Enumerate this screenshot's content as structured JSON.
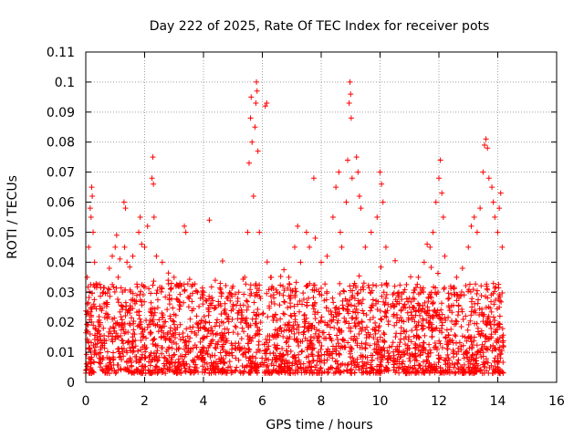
{
  "chart_data": {
    "type": "scatter",
    "title": "Day 222 of 2025, Rate Of TEC Index for receiver pots",
    "xlabel": "GPS time / hours",
    "ylabel": "ROTI / TECUs",
    "xlim": [
      0,
      16
    ],
    "ylim": [
      0,
      0.11
    ],
    "xticks": [
      0,
      2,
      4,
      6,
      8,
      10,
      12,
      14,
      16
    ],
    "yticks": [
      0,
      0.01,
      0.02,
      0.03,
      0.04,
      0.05,
      0.06,
      0.07,
      0.08,
      0.09,
      0.1,
      0.11
    ],
    "xtick_labels": [
      "0",
      "2",
      "4",
      "6",
      "8",
      "10",
      "12",
      "14",
      "16"
    ],
    "ytick_labels": [
      "0",
      "0.01",
      "0.02",
      "0.03",
      "0.04",
      "0.05",
      "0.06",
      "0.07",
      "0.08",
      "0.09",
      "0.1",
      "0.11"
    ],
    "grid": true,
    "marker": "+",
    "marker_color": "#ff0000",
    "x_data_range": [
      0.0,
      14.2
    ],
    "series": [
      {
        "name": "pots",
        "points": [
          [
            0.05,
            0.035
          ],
          [
            0.1,
            0.045
          ],
          [
            0.15,
            0.058
          ],
          [
            0.2,
            0.065
          ],
          [
            0.22,
            0.062
          ],
          [
            0.25,
            0.05
          ],
          [
            0.3,
            0.04
          ],
          [
            0.18,
            0.055
          ],
          [
            0.6,
            0.03
          ],
          [
            0.8,
            0.038
          ],
          [
            0.9,
            0.042
          ],
          [
            1.0,
            0.045
          ],
          [
            1.05,
            0.049
          ],
          [
            1.1,
            0.035
          ],
          [
            1.3,
            0.06
          ],
          [
            1.35,
            0.058
          ],
          [
            1.32,
            0.045
          ],
          [
            1.4,
            0.04
          ],
          [
            1.6,
            0.042
          ],
          [
            1.8,
            0.05
          ],
          [
            1.85,
            0.055
          ],
          [
            1.9,
            0.046
          ],
          [
            2.0,
            0.045
          ],
          [
            2.1,
            0.052
          ],
          [
            2.25,
            0.068
          ],
          [
            2.28,
            0.075
          ],
          [
            2.3,
            0.066
          ],
          [
            2.32,
            0.055
          ],
          [
            2.4,
            0.042
          ],
          [
            2.6,
            0.04
          ],
          [
            2.8,
            0.034
          ],
          [
            3.0,
            0.035
          ],
          [
            3.2,
            0.033
          ],
          [
            3.35,
            0.052
          ],
          [
            3.4,
            0.05
          ],
          [
            3.6,
            0.032
          ],
          [
            3.8,
            0.03
          ],
          [
            4.0,
            0.03
          ],
          [
            4.2,
            0.054
          ],
          [
            4.4,
            0.034
          ],
          [
            4.6,
            0.03
          ],
          [
            4.8,
            0.028
          ],
          [
            5.0,
            0.032
          ],
          [
            5.2,
            0.03
          ],
          [
            5.4,
            0.035
          ],
          [
            5.5,
            0.05
          ],
          [
            5.55,
            0.073
          ],
          [
            5.6,
            0.088
          ],
          [
            5.62,
            0.095
          ],
          [
            5.65,
            0.08
          ],
          [
            5.7,
            0.062
          ],
          [
            5.8,
            0.1
          ],
          [
            5.82,
            0.097
          ],
          [
            5.78,
            0.093
          ],
          [
            5.75,
            0.085
          ],
          [
            5.85,
            0.077
          ],
          [
            5.9,
            0.05
          ],
          [
            6.1,
            0.092
          ],
          [
            6.15,
            0.093
          ],
          [
            6.3,
            0.035
          ],
          [
            6.5,
            0.03
          ],
          [
            6.7,
            0.032
          ],
          [
            6.9,
            0.035
          ],
          [
            7.1,
            0.045
          ],
          [
            7.2,
            0.052
          ],
          [
            7.3,
            0.04
          ],
          [
            7.5,
            0.05
          ],
          [
            7.6,
            0.045
          ],
          [
            7.75,
            0.068
          ],
          [
            7.8,
            0.048
          ],
          [
            8.0,
            0.04
          ],
          [
            8.2,
            0.042
          ],
          [
            8.4,
            0.055
          ],
          [
            8.5,
            0.065
          ],
          [
            8.6,
            0.07
          ],
          [
            8.65,
            0.05
          ],
          [
            8.7,
            0.045
          ],
          [
            8.85,
            0.06
          ],
          [
            8.9,
            0.074
          ],
          [
            8.95,
            0.093
          ],
          [
            8.98,
            0.1
          ],
          [
            9.0,
            0.096
          ],
          [
            9.02,
            0.088
          ],
          [
            9.05,
            0.068
          ],
          [
            9.2,
            0.075
          ],
          [
            9.25,
            0.07
          ],
          [
            9.3,
            0.062
          ],
          [
            9.35,
            0.058
          ],
          [
            9.5,
            0.045
          ],
          [
            9.7,
            0.05
          ],
          [
            9.9,
            0.055
          ],
          [
            10.0,
            0.07
          ],
          [
            10.05,
            0.066
          ],
          [
            10.1,
            0.06
          ],
          [
            10.2,
            0.045
          ],
          [
            10.5,
            0.032
          ],
          [
            10.8,
            0.03
          ],
          [
            11.0,
            0.028
          ],
          [
            11.3,
            0.035
          ],
          [
            11.5,
            0.04
          ],
          [
            11.6,
            0.046
          ],
          [
            11.7,
            0.045
          ],
          [
            11.8,
            0.05
          ],
          [
            11.9,
            0.06
          ],
          [
            12.0,
            0.068
          ],
          [
            12.05,
            0.074
          ],
          [
            12.1,
            0.063
          ],
          [
            12.15,
            0.055
          ],
          [
            12.2,
            0.042
          ],
          [
            12.4,
            0.032
          ],
          [
            12.6,
            0.035
          ],
          [
            12.8,
            0.038
          ],
          [
            13.0,
            0.045
          ],
          [
            13.1,
            0.052
          ],
          [
            13.2,
            0.055
          ],
          [
            13.3,
            0.05
          ],
          [
            13.4,
            0.058
          ],
          [
            13.5,
            0.07
          ],
          [
            13.55,
            0.079
          ],
          [
            13.6,
            0.081
          ],
          [
            13.65,
            0.078
          ],
          [
            13.7,
            0.068
          ],
          [
            13.8,
            0.065
          ],
          [
            13.85,
            0.06
          ],
          [
            13.9,
            0.055
          ],
          [
            14.0,
            0.05
          ],
          [
            14.05,
            0.058
          ],
          [
            14.1,
            0.063
          ],
          [
            14.15,
            0.045
          ]
        ]
      }
    ]
  }
}
